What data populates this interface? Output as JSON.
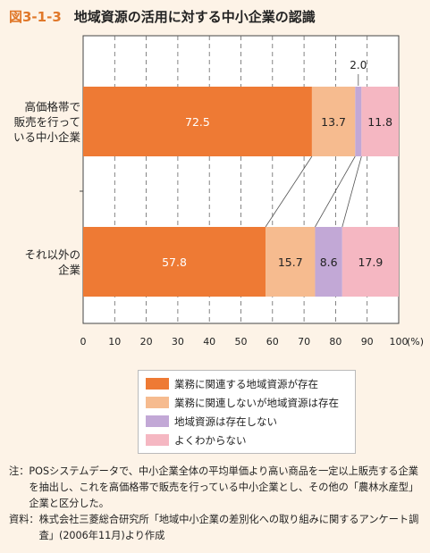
{
  "title": {
    "number": "図3-1-3",
    "text": "地域資源の活用に対する中小企業の認識"
  },
  "colors": [
    "#ee7a34",
    "#f6bb8f",
    "#c2a8d6",
    "#f5b7c2"
  ],
  "chart_data": {
    "type": "bar",
    "orientation": "horizontal",
    "stacked": true,
    "categories": [
      [
        "高価格帯で",
        "販売を行って",
        "いる中小企業"
      ],
      [
        "それ以外の",
        "企業"
      ]
    ],
    "series": [
      {
        "name": "業務に関連する地域資源が存在",
        "values": [
          72.5,
          57.8
        ],
        "labels": [
          "72.5",
          "57.8"
        ]
      },
      {
        "name": "業務に関連しないが地域資源は存在",
        "values": [
          13.7,
          15.7
        ],
        "labels": [
          "13.7",
          "15.7"
        ]
      },
      {
        "name": "地域資源は存在しない",
        "values": [
          2.0,
          8.6
        ],
        "labels": [
          "2.0",
          "8.6"
        ]
      },
      {
        "name": "よくわからない",
        "values": [
          11.8,
          17.9
        ],
        "labels": [
          "11.8",
          "17.9"
        ]
      }
    ],
    "xlim": [
      0,
      100
    ],
    "xticks": [
      "0",
      "10",
      "20",
      "30",
      "40",
      "50",
      "60",
      "70",
      "80",
      "90",
      "100"
    ],
    "xunit": "(%)",
    "grid": true,
    "legend_position": "bottom"
  },
  "notes": [
    {
      "label": "注：",
      "text": "POSシステムデータで、中小企業全体の平均単価より高い商品を一定以上販売する企業を抽出し、これを高価格帯で販売を行っている中小企業とし、その他の「農林水産型」企業と区分した。"
    },
    {
      "label": "資料：",
      "text": "株式会社三菱総合研究所「地域中小企業の差別化への取り組みに関するアンケート調査」(2006年11月)より作成"
    }
  ]
}
